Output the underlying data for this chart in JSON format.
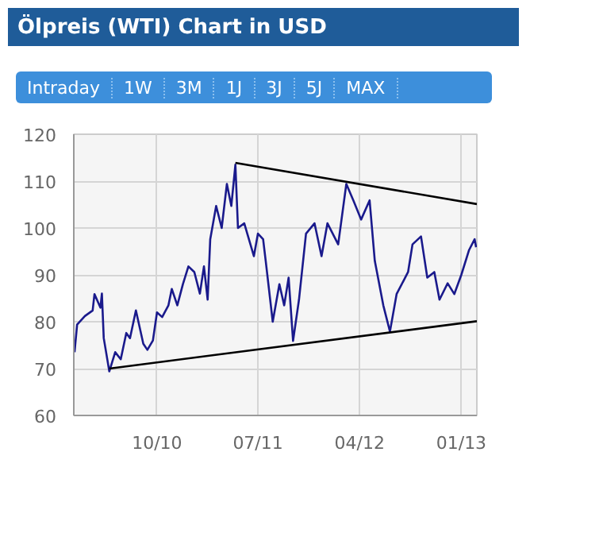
{
  "chart_data": {
    "type": "line",
    "title": "Ölpreis (WTI) Chart in USD",
    "annotations": [
      "Intraday",
      "1W",
      "3M",
      "1J",
      "3J",
      "5J",
      "MAX"
    ],
    "xlim": [
      "2010-02-18",
      "2013-02-12"
    ],
    "ylim": [
      60,
      120
    ],
    "yticks": [
      60,
      70,
      80,
      90,
      100,
      110,
      120
    ],
    "xticks": [
      {
        "value": "2010-10-01",
        "label": "10/10"
      },
      {
        "value": "2011-07-01",
        "label": "07/11"
      },
      {
        "value": "2012-04-01",
        "label": "04/12"
      },
      {
        "value": "2013-01-01",
        "label": "01/13"
      }
    ],
    "grid": true,
    "line_style": "solid",
    "series": [
      {
        "color": "#1a1a8c",
        "x": [
          "2010-02-20",
          "2010-02-27",
          "2010-03-20",
          "2010-04-10",
          "2010-04-15",
          "2010-05-01",
          "2010-05-05",
          "2010-05-10",
          "2010-05-20",
          "2010-05-25",
          "2010-06-10",
          "2010-06-25",
          "2010-07-10",
          "2010-07-20",
          "2010-08-05",
          "2010-08-25",
          "2010-09-05",
          "2010-09-20",
          "2010-10-01",
          "2010-10-15",
          "2010-11-01",
          "2010-11-10",
          "2010-11-25",
          "2010-12-10",
          "2010-12-25",
          "2011-01-10",
          "2011-01-25",
          "2011-02-05",
          "2011-02-15",
          "2011-02-22",
          "2011-03-10",
          "2011-03-25",
          "2011-04-08",
          "2011-04-20",
          "2011-05-01",
          "2011-05-08",
          "2011-05-25",
          "2011-06-20",
          "2011-07-01",
          "2011-07-15",
          "2011-07-22",
          "2011-08-10",
          "2011-08-28",
          "2011-09-10",
          "2011-09-22",
          "2011-10-04",
          "2011-10-20",
          "2011-11-08",
          "2011-12-01",
          "2011-12-20",
          "2012-01-05",
          "2012-02-03",
          "2012-02-25",
          "2012-03-15",
          "2012-04-05",
          "2012-04-28",
          "2012-05-12",
          "2012-06-04",
          "2012-06-22",
          "2012-07-10",
          "2012-08-10",
          "2012-08-22",
          "2012-09-14",
          "2012-10-01",
          "2012-10-20",
          "2012-11-03",
          "2012-11-25",
          "2012-12-13",
          "2013-01-01",
          "2013-01-22",
          "2013-02-06",
          "2013-02-10"
        ],
        "values": [
          73.5,
          79.4,
          81.2,
          82.4,
          85.9,
          83,
          86,
          76.5,
          71.8,
          69.4,
          73.5,
          72,
          77.6,
          76.5,
          82.4,
          75.3,
          74,
          76,
          82,
          81,
          83.5,
          87,
          83.5,
          88,
          91.8,
          90.6,
          86,
          91.8,
          84.7,
          97.6,
          104.7,
          100,
          109.4,
          104.7,
          113.5,
          100,
          101,
          94,
          98.8,
          97.6,
          93,
          80,
          88,
          83.5,
          89.4,
          75.9,
          84.7,
          98.8,
          101,
          94,
          101,
          96.5,
          109.4,
          105.9,
          101.8,
          105.9,
          93,
          83.5,
          77.9,
          85.9,
          90.6,
          96.5,
          98.2,
          89.4,
          90.6,
          84.7,
          88.2,
          85.9,
          90,
          95.3,
          97.6,
          95.9
        ]
      },
      {
        "color": "#000000",
        "x": [
          "2011-05-01",
          "2013-02-12"
        ],
        "values": [
          113.9,
          105.1
        ]
      },
      {
        "color": "#000000",
        "x": [
          "2010-05-25",
          "2013-02-12"
        ],
        "values": [
          70,
          80.1
        ]
      }
    ]
  }
}
